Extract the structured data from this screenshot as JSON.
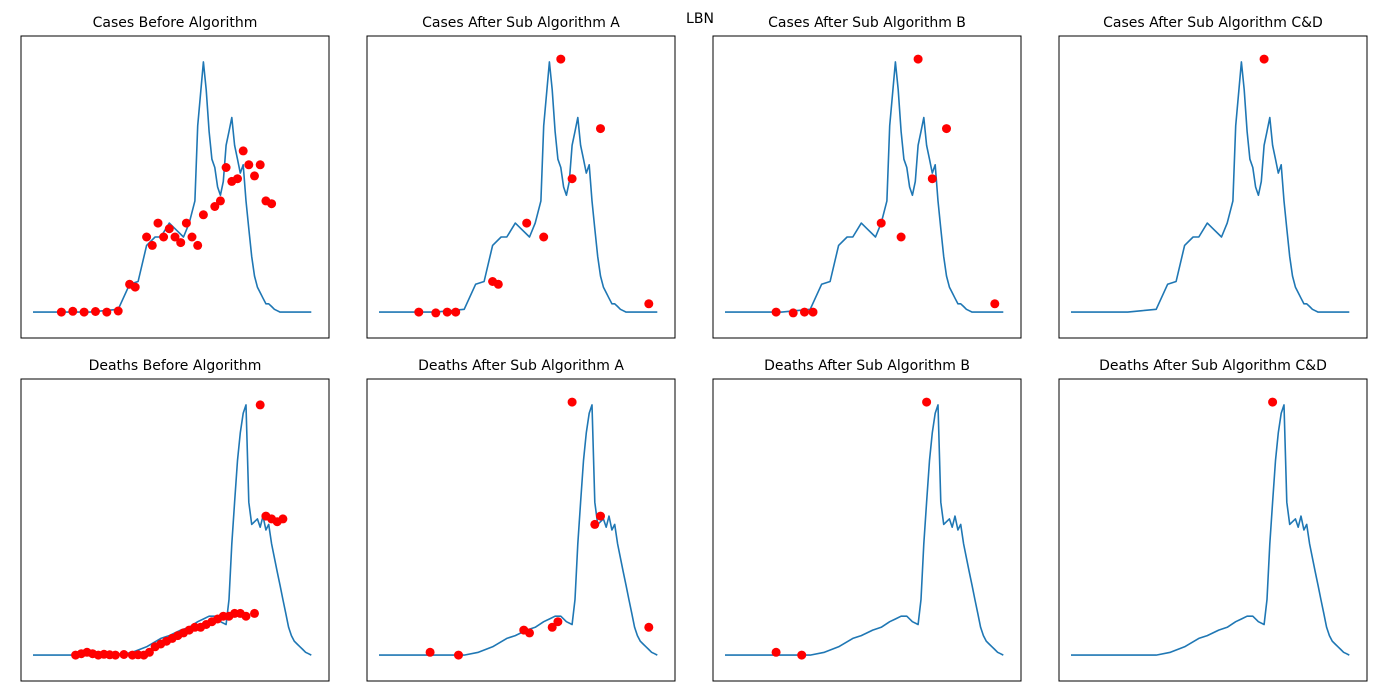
{
  "figure": {
    "title": "LBN"
  },
  "colors": {
    "line": "#1f77b4",
    "marker": "#ff0000",
    "axes": "#000000"
  },
  "chart_data": [
    {
      "type": "line",
      "title": "Cases Before Algorithm",
      "xlabel": "",
      "ylabel": "",
      "xlim": [
        0,
        100
      ],
      "ylim": [
        0,
        100
      ],
      "ticks": "hidden",
      "grid": false,
      "legend": "none",
      "series": [
        {
          "x": [
            0,
            10,
            20,
            25,
            30,
            34,
            37,
            40,
            43,
            45,
            48,
            50,
            53,
            55,
            57,
            58,
            60,
            61,
            62,
            63,
            64,
            65,
            66,
            67,
            68,
            69,
            70,
            71,
            72,
            73,
            74,
            75,
            76,
            77,
            78,
            79,
            80,
            81,
            82,
            83,
            84,
            85,
            86,
            87,
            88,
            89,
            90,
            91,
            92,
            93,
            94,
            95,
            96,
            97,
            98
          ],
          "y": [
            5,
            5,
            5,
            5.5,
            6,
            15,
            16,
            29,
            32,
            32,
            37,
            35,
            32,
            37,
            45,
            72,
            95,
            85,
            70,
            60,
            57,
            50,
            47,
            52,
            65,
            70,
            75,
            65,
            60,
            55,
            58,
            45,
            35,
            25,
            18,
            14,
            12,
            10,
            8,
            8,
            7,
            6,
            5.5,
            5,
            5,
            5,
            5,
            5,
            5,
            5,
            5,
            5,
            5,
            5,
            5
          ]
        }
      ],
      "markers": {
        "x": [
          10,
          14,
          18,
          22,
          26,
          30,
          34,
          36,
          40,
          42,
          44,
          46,
          48,
          50,
          52,
          54,
          56,
          58,
          60,
          64,
          66,
          68,
          70,
          72,
          74,
          76,
          78,
          80,
          82,
          84
        ],
        "y": [
          5,
          5.3,
          5,
          5.2,
          5,
          5.4,
          15,
          14,
          32,
          29,
          37,
          32,
          35,
          32,
          30,
          37,
          32,
          29,
          40,
          43,
          45,
          57,
          52,
          53,
          63,
          58,
          54,
          58,
          45,
          44
        ]
      }
    },
    {
      "type": "line",
      "title": "Cases After Sub Algorithm A",
      "xlabel": "",
      "ylabel": "",
      "xlim": [
        0,
        100
      ],
      "ylim": [
        0,
        100
      ],
      "ticks": "hidden",
      "grid": false,
      "legend": "none",
      "series": [
        {
          "x": [
            0,
            10,
            20,
            25,
            30,
            34,
            37,
            40,
            43,
            45,
            48,
            50,
            53,
            55,
            57,
            58,
            60,
            61,
            62,
            63,
            64,
            65,
            66,
            67,
            68,
            69,
            70,
            71,
            72,
            73,
            74,
            75,
            76,
            77,
            78,
            79,
            80,
            81,
            82,
            83,
            84,
            85,
            86,
            87,
            88,
            89,
            90,
            91,
            92,
            93,
            94,
            95,
            96,
            97,
            98
          ],
          "y": [
            5,
            5,
            5,
            5.5,
            6,
            15,
            16,
            29,
            32,
            32,
            37,
            35,
            32,
            37,
            45,
            72,
            95,
            85,
            70,
            60,
            57,
            50,
            47,
            52,
            65,
            70,
            75,
            65,
            60,
            55,
            58,
            45,
            35,
            25,
            18,
            14,
            12,
            10,
            8,
            8,
            7,
            6,
            5.5,
            5,
            5,
            5,
            5,
            5,
            5,
            5,
            5,
            5,
            5,
            5,
            5
          ]
        }
      ],
      "markers": {
        "x": [
          14,
          20,
          24,
          27,
          40,
          42,
          52,
          58,
          64,
          68,
          78,
          95
        ],
        "y": [
          5,
          4.7,
          5,
          5,
          16,
          15,
          37,
          32,
          96,
          53,
          71,
          8
        ]
      }
    },
    {
      "type": "line",
      "title": "Cases After Sub Algorithm B",
      "xlabel": "",
      "ylabel": "",
      "xlim": [
        0,
        100
      ],
      "ylim": [
        0,
        100
      ],
      "ticks": "hidden",
      "grid": false,
      "legend": "none",
      "series": [
        {
          "x": [
            0,
            10,
            20,
            25,
            30,
            34,
            37,
            40,
            43,
            45,
            48,
            50,
            53,
            55,
            57,
            58,
            60,
            61,
            62,
            63,
            64,
            65,
            66,
            67,
            68,
            69,
            70,
            71,
            72,
            73,
            74,
            75,
            76,
            77,
            78,
            79,
            80,
            81,
            82,
            83,
            84,
            85,
            86,
            87,
            88,
            89,
            90,
            91,
            92,
            93,
            94,
            95,
            96,
            97,
            98
          ],
          "y": [
            5,
            5,
            5,
            5.5,
            6,
            15,
            16,
            29,
            32,
            32,
            37,
            35,
            32,
            37,
            45,
            72,
            95,
            85,
            70,
            60,
            57,
            50,
            47,
            52,
            65,
            70,
            75,
            65,
            60,
            55,
            58,
            45,
            35,
            25,
            18,
            14,
            12,
            10,
            8,
            8,
            7,
            6,
            5.5,
            5,
            5,
            5,
            5,
            5,
            5,
            5,
            5,
            5,
            5,
            5,
            5
          ]
        }
      ],
      "markers": {
        "x": [
          18,
          24,
          28,
          31,
          55,
          62,
          68,
          73,
          78,
          95
        ],
        "y": [
          5,
          4.7,
          5,
          5,
          37,
          32,
          96,
          53,
          71,
          8
        ]
      }
    },
    {
      "type": "line",
      "title": "Cases After Sub Algorithm C&D",
      "xlabel": "",
      "ylabel": "",
      "xlim": [
        0,
        100
      ],
      "ylim": [
        0,
        100
      ],
      "ticks": "hidden",
      "grid": false,
      "legend": "none",
      "series": [
        {
          "x": [
            0,
            10,
            20,
            25,
            30,
            34,
            37,
            40,
            43,
            45,
            48,
            50,
            53,
            55,
            57,
            58,
            60,
            61,
            62,
            63,
            64,
            65,
            66,
            67,
            68,
            69,
            70,
            71,
            72,
            73,
            74,
            75,
            76,
            77,
            78,
            79,
            80,
            81,
            82,
            83,
            84,
            85,
            86,
            87,
            88,
            89,
            90,
            91,
            92,
            93,
            94,
            95,
            96,
            97,
            98
          ],
          "y": [
            5,
            5,
            5,
            5.5,
            6,
            15,
            16,
            29,
            32,
            32,
            37,
            35,
            32,
            37,
            45,
            72,
            95,
            85,
            70,
            60,
            57,
            50,
            47,
            52,
            65,
            70,
            75,
            65,
            60,
            55,
            58,
            45,
            35,
            25,
            18,
            14,
            12,
            10,
            8,
            8,
            7,
            6,
            5.5,
            5,
            5,
            5,
            5,
            5,
            5,
            5,
            5,
            5,
            5,
            5,
            5
          ]
        }
      ],
      "markers": {
        "x": [
          68
        ],
        "y": [
          96
        ]
      }
    },
    {
      "type": "line",
      "title": "Deaths Before Algorithm",
      "xlabel": "",
      "ylabel": "",
      "xlim": [
        0,
        100
      ],
      "ylim": [
        0,
        100
      ],
      "ticks": "hidden",
      "grid": false,
      "legend": "none",
      "series": [
        {
          "x": [
            0,
            10,
            20,
            30,
            35,
            40,
            45,
            48,
            50,
            52,
            55,
            58,
            60,
            62,
            64,
            66,
            68,
            69,
            70,
            71,
            72,
            73,
            74,
            75,
            76,
            77,
            78,
            79,
            80,
            81,
            82,
            83,
            84,
            85,
            86,
            87,
            88,
            89,
            90,
            91,
            92,
            93,
            94,
            95,
            96,
            97,
            98
          ],
          "y": [
            5,
            5,
            5,
            5,
            6,
            8,
            11,
            12,
            13,
            14,
            15,
            17,
            18,
            19,
            19,
            17,
            16,
            25,
            45,
            60,
            75,
            85,
            92,
            95,
            60,
            52,
            53,
            54,
            51,
            55,
            50,
            52,
            45,
            40,
            35,
            30,
            25,
            20,
            15,
            12,
            10,
            9,
            8,
            7,
            6,
            5.5,
            5
          ]
        }
      ],
      "markers": {
        "x": [
          15,
          17,
          19,
          21,
          23,
          25,
          27,
          29,
          32,
          35,
          37,
          39,
          41,
          43,
          45,
          47,
          49,
          51,
          53,
          55,
          57,
          59,
          61,
          63,
          65,
          67,
          69,
          71,
          73,
          75,
          78,
          80,
          82,
          84,
          86,
          88
        ],
        "y": [
          5,
          5.5,
          6,
          5.5,
          5,
          5.3,
          5.1,
          5,
          5.2,
          5,
          5.1,
          5,
          6,
          8,
          9,
          10,
          11,
          12,
          13,
          14,
          15,
          15,
          16,
          17,
          18,
          19,
          19,
          20,
          20,
          19,
          20,
          95,
          55,
          54,
          53,
          54
        ]
      }
    },
    {
      "type": "line",
      "title": "Deaths After Sub Algorithm A",
      "xlabel": "",
      "ylabel": "",
      "xlim": [
        0,
        100
      ],
      "ylim": [
        0,
        100
      ],
      "ticks": "hidden",
      "grid": false,
      "legend": "none",
      "series": [
        {
          "x": [
            0,
            10,
            20,
            30,
            35,
            40,
            45,
            48,
            50,
            52,
            55,
            58,
            60,
            62,
            64,
            66,
            68,
            69,
            70,
            71,
            72,
            73,
            74,
            75,
            76,
            77,
            78,
            79,
            80,
            81,
            82,
            83,
            84,
            85,
            86,
            87,
            88,
            89,
            90,
            91,
            92,
            93,
            94,
            95,
            96,
            97,
            98
          ],
          "y": [
            5,
            5,
            5,
            5,
            6,
            8,
            11,
            12,
            13,
            14,
            15,
            17,
            18,
            19,
            19,
            17,
            16,
            25,
            45,
            60,
            75,
            85,
            92,
            95,
            60,
            52,
            53,
            54,
            51,
            55,
            50,
            52,
            45,
            40,
            35,
            30,
            25,
            20,
            15,
            12,
            10,
            9,
            8,
            7,
            6,
            5.5,
            5
          ]
        }
      ],
      "markers": {
        "x": [
          18,
          28,
          51,
          53,
          61,
          63,
          68,
          76,
          78,
          95
        ],
        "y": [
          6,
          5,
          14,
          13,
          15,
          17,
          96,
          52,
          55,
          15
        ]
      }
    },
    {
      "type": "line",
      "title": "Deaths After Sub Algorithm B",
      "xlabel": "",
      "ylabel": "",
      "xlim": [
        0,
        100
      ],
      "ylim": [
        0,
        100
      ],
      "ticks": "hidden",
      "grid": false,
      "legend": "none",
      "series": [
        {
          "x": [
            0,
            10,
            20,
            30,
            35,
            40,
            45,
            48,
            50,
            52,
            55,
            58,
            60,
            62,
            64,
            66,
            68,
            69,
            70,
            71,
            72,
            73,
            74,
            75,
            76,
            77,
            78,
            79,
            80,
            81,
            82,
            83,
            84,
            85,
            86,
            87,
            88,
            89,
            90,
            91,
            92,
            93,
            94,
            95,
            96,
            97,
            98
          ],
          "y": [
            5,
            5,
            5,
            5,
            6,
            8,
            11,
            12,
            13,
            14,
            15,
            17,
            18,
            19,
            19,
            17,
            16,
            25,
            45,
            60,
            75,
            85,
            92,
            95,
            60,
            52,
            53,
            54,
            51,
            55,
            50,
            52,
            45,
            40,
            35,
            30,
            25,
            20,
            15,
            12,
            10,
            9,
            8,
            7,
            6,
            5.5,
            5
          ]
        }
      ],
      "markers": {
        "x": [
          18,
          27,
          71
        ],
        "y": [
          6,
          5,
          96
        ]
      }
    },
    {
      "type": "line",
      "title": "Deaths After Sub Algorithm C&D",
      "xlabel": "",
      "ylabel": "",
      "xlim": [
        0,
        100
      ],
      "ylim": [
        0,
        100
      ],
      "ticks": "hidden",
      "grid": false,
      "legend": "none",
      "series": [
        {
          "x": [
            0,
            10,
            20,
            30,
            35,
            40,
            45,
            48,
            50,
            52,
            55,
            58,
            60,
            62,
            64,
            66,
            68,
            69,
            70,
            71,
            72,
            73,
            74,
            75,
            76,
            77,
            78,
            79,
            80,
            81,
            82,
            83,
            84,
            85,
            86,
            87,
            88,
            89,
            90,
            91,
            92,
            93,
            94,
            95,
            96,
            97,
            98
          ],
          "y": [
            5,
            5,
            5,
            5,
            6,
            8,
            11,
            12,
            13,
            14,
            15,
            17,
            18,
            19,
            19,
            17,
            16,
            25,
            45,
            60,
            75,
            85,
            92,
            95,
            60,
            52,
            53,
            54,
            51,
            55,
            50,
            52,
            45,
            40,
            35,
            30,
            25,
            20,
            15,
            12,
            10,
            9,
            8,
            7,
            6,
            5.5,
            5
          ]
        }
      ],
      "markers": {
        "x": [
          71
        ],
        "y": [
          96
        ]
      }
    }
  ]
}
